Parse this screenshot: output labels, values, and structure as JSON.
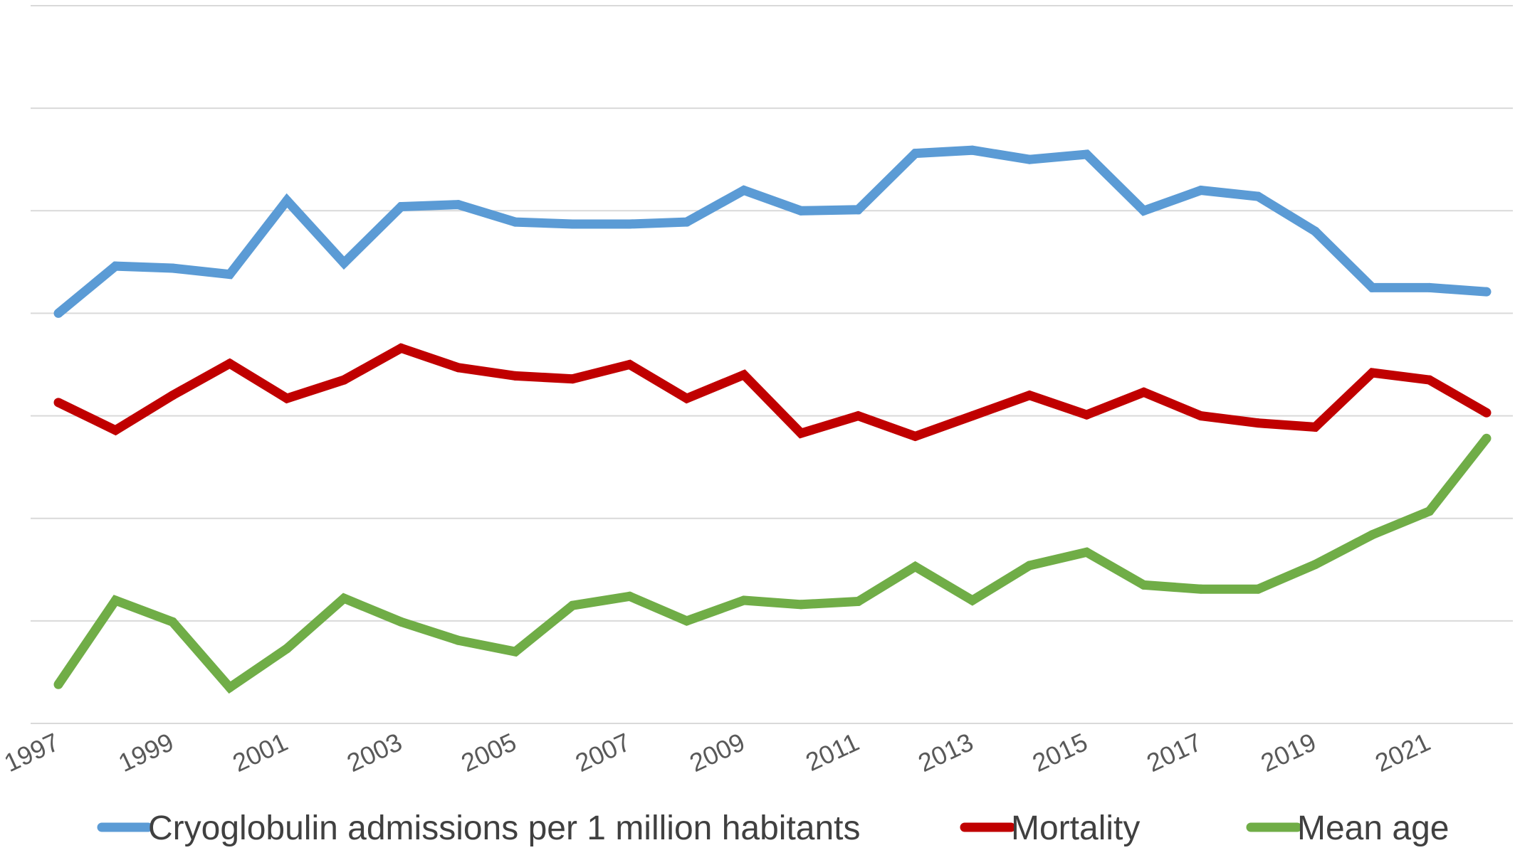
{
  "chart_data": {
    "type": "line",
    "title": "",
    "xlabel": "",
    "ylabel": "",
    "grid": true,
    "y_axis_labels_shown": false,
    "ylim": [
      0,
      7
    ],
    "legend_position": "bottom",
    "x": [
      1997,
      1998,
      1999,
      2000,
      2001,
      2002,
      2003,
      2004,
      2005,
      2006,
      2007,
      2008,
      2009,
      2010,
      2011,
      2012,
      2013,
      2014,
      2015,
      2016,
      2017,
      2018,
      2019,
      2020,
      2021,
      2022
    ],
    "x_tick_labels": [
      "1997",
      "1999",
      "2001",
      "2003",
      "2005",
      "2007",
      "2009",
      "2011",
      "2013",
      "2015",
      "2017",
      "2019",
      "2021"
    ],
    "series": [
      {
        "name": "Cryoglobulin admissions per 1 million habitants",
        "color": "#5b9bd5",
        "values": [
          4.0,
          4.46,
          4.44,
          4.38,
          5.1,
          4.49,
          5.04,
          5.06,
          4.89,
          4.87,
          4.87,
          4.89,
          5.2,
          5.0,
          5.01,
          5.56,
          5.59,
          5.5,
          5.55,
          5.0,
          5.2,
          5.14,
          4.8,
          4.25,
          4.25,
          4.21
        ]
      },
      {
        "name": "Mortality",
        "color": "#c00000",
        "values": [
          3.13,
          2.86,
          3.2,
          3.51,
          3.17,
          3.35,
          3.66,
          3.47,
          3.39,
          3.36,
          3.5,
          3.17,
          3.4,
          2.83,
          3.0,
          2.8,
          3.0,
          3.2,
          3.01,
          3.23,
          3.0,
          2.93,
          2.89,
          3.42,
          3.35,
          3.03
        ]
      },
      {
        "name": "Mean age",
        "color": "#70ad47",
        "values": [
          0.38,
          1.2,
          0.99,
          0.35,
          0.73,
          1.22,
          0.99,
          0.81,
          0.7,
          1.15,
          1.24,
          1.0,
          1.2,
          1.16,
          1.19,
          1.53,
          1.2,
          1.54,
          1.67,
          1.35,
          1.31,
          1.31,
          1.55,
          1.84,
          2.07,
          2.78
        ]
      }
    ]
  }
}
